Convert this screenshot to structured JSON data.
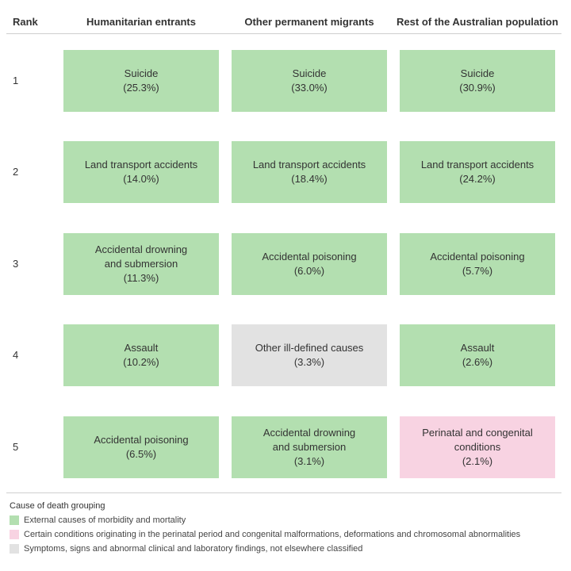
{
  "colors": {
    "external": "#b3dfb0",
    "perinatal": "#f8d3e2",
    "symptoms": "#e2e2e2"
  },
  "headers": {
    "rank": "Rank",
    "columns": [
      "Humanitarian entrants",
      "Other permanent migrants",
      "Rest of the Australian population"
    ]
  },
  "chart_data": {
    "type": "table",
    "ranks": [
      "1",
      "2",
      "3",
      "4",
      "5"
    ],
    "columns": [
      "Humanitarian entrants",
      "Other permanent migrants",
      "Rest of the Australian population"
    ],
    "rows": [
      [
        {
          "label": "Suicide",
          "pct": "(25.3%)",
          "value": 25.3,
          "group": "external"
        },
        {
          "label": "Suicide",
          "pct": "(33.0%)",
          "value": 33.0,
          "group": "external"
        },
        {
          "label": "Suicide",
          "pct": "(30.9%)",
          "value": 30.9,
          "group": "external"
        }
      ],
      [
        {
          "label": "Land transport accidents",
          "pct": "(14.0%)",
          "value": 14.0,
          "group": "external"
        },
        {
          "label": "Land transport accidents",
          "pct": "(18.4%)",
          "value": 18.4,
          "group": "external"
        },
        {
          "label": "Land transport accidents",
          "pct": "(24.2%)",
          "value": 24.2,
          "group": "external"
        }
      ],
      [
        {
          "label": "Accidental drowning\nand submersion",
          "pct": "(11.3%)",
          "value": 11.3,
          "group": "external"
        },
        {
          "label": "Accidental poisoning",
          "pct": "(6.0%)",
          "value": 6.0,
          "group": "external"
        },
        {
          "label": "Accidental poisoning",
          "pct": "(5.7%)",
          "value": 5.7,
          "group": "external"
        }
      ],
      [
        {
          "label": "Assault",
          "pct": "(10.2%)",
          "value": 10.2,
          "group": "external"
        },
        {
          "label": "Other ill-defined causes",
          "pct": "(3.3%)",
          "value": 3.3,
          "group": "symptoms"
        },
        {
          "label": "Assault",
          "pct": "(2.6%)",
          "value": 2.6,
          "group": "external"
        }
      ],
      [
        {
          "label": "Accidental poisoning",
          "pct": "(6.5%)",
          "value": 6.5,
          "group": "external"
        },
        {
          "label": "Accidental drowning\nand submersion",
          "pct": "(3.1%)",
          "value": 3.1,
          "group": "external"
        },
        {
          "label": "Perinatal and congenital\nconditions",
          "pct": "(2.1%)",
          "value": 2.1,
          "group": "perinatal"
        }
      ]
    ]
  },
  "legend": {
    "title": "Cause of death grouping",
    "items": [
      {
        "key": "external",
        "label": "External causes of morbidity and mortality"
      },
      {
        "key": "perinatal",
        "label": "Certain conditions originating in the perinatal period and congenital malformations, deformations and chromosomal abnormalities"
      },
      {
        "key": "symptoms",
        "label": "Symptoms, signs and abnormal clinical and laboratory findings, not elsewhere classified"
      }
    ]
  }
}
